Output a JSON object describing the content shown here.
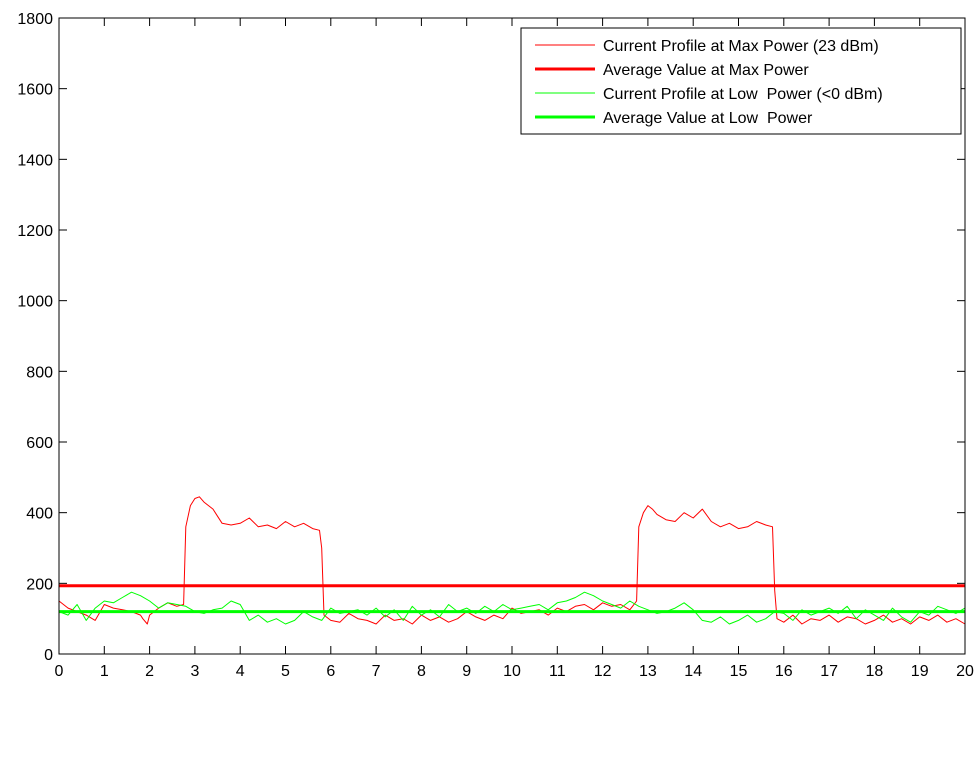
{
  "chart_data": {
    "type": "line",
    "title": "",
    "xlabel": "",
    "ylabel": "",
    "xlim": [
      0,
      20
    ],
    "ylim": [
      0,
      1800
    ],
    "x_ticks": [
      0,
      1,
      2,
      3,
      4,
      5,
      6,
      7,
      8,
      9,
      10,
      11,
      12,
      13,
      14,
      15,
      16,
      17,
      18,
      19,
      20
    ],
    "y_ticks": [
      0,
      200,
      400,
      600,
      800,
      1000,
      1200,
      1400,
      1600,
      1800
    ],
    "grid": false,
    "legend_position": "top-right",
    "series": [
      {
        "name": "Current Profile at Max Power (23 dBm)",
        "color": "#ff0000",
        "style": "thin",
        "x": [
          0,
          0.2,
          0.4,
          0.6,
          0.8,
          1.0,
          1.2,
          1.4,
          1.6,
          1.8,
          1.85,
          1.95,
          2.0,
          2.2,
          2.4,
          2.6,
          2.75,
          2.8,
          2.9,
          3.0,
          3.1,
          3.2,
          3.3,
          3.4,
          3.5,
          3.6,
          3.8,
          4.0,
          4.2,
          4.4,
          4.6,
          4.8,
          5.0,
          5.2,
          5.4,
          5.6,
          5.75,
          5.8,
          5.85,
          6.0,
          6.2,
          6.4,
          6.6,
          6.8,
          7.0,
          7.2,
          7.4,
          7.6,
          7.8,
          8.0,
          8.2,
          8.4,
          8.6,
          8.8,
          9.0,
          9.2,
          9.4,
          9.6,
          9.8,
          10.0,
          10.2,
          10.4,
          10.6,
          10.8,
          11.0,
          11.2,
          11.4,
          11.6,
          11.8,
          12.0,
          12.2,
          12.4,
          12.6,
          12.75,
          12.8,
          12.9,
          13.0,
          13.1,
          13.2,
          13.4,
          13.6,
          13.8,
          14.0,
          14.2,
          14.4,
          14.6,
          14.8,
          15.0,
          15.2,
          15.4,
          15.6,
          15.75,
          15.8,
          15.85,
          16.0,
          16.2,
          16.4,
          16.6,
          16.8,
          17.0,
          17.2,
          17.4,
          17.6,
          17.8,
          18.0,
          18.2,
          18.4,
          18.6,
          18.8,
          19.0,
          19.2,
          19.4,
          19.6,
          19.8,
          20.0
        ],
        "y": [
          150,
          130,
          120,
          110,
          95,
          140,
          130,
          125,
          120,
          110,
          100,
          85,
          110,
          130,
          145,
          135,
          140,
          360,
          420,
          440,
          445,
          430,
          420,
          410,
          390,
          370,
          365,
          370,
          385,
          360,
          365,
          355,
          375,
          360,
          370,
          355,
          350,
          300,
          110,
          95,
          90,
          115,
          100,
          95,
          85,
          110,
          95,
          100,
          85,
          110,
          95,
          105,
          90,
          100,
          120,
          105,
          95,
          110,
          100,
          130,
          115,
          120,
          125,
          110,
          130,
          120,
          135,
          140,
          125,
          145,
          135,
          140,
          125,
          150,
          360,
          400,
          420,
          410,
          395,
          380,
          375,
          400,
          385,
          410,
          375,
          360,
          370,
          355,
          360,
          375,
          365,
          360,
          180,
          100,
          90,
          110,
          85,
          100,
          95,
          110,
          90,
          105,
          100,
          85,
          95,
          110,
          90,
          100,
          85,
          105,
          95,
          110,
          90,
          100,
          85
        ]
      },
      {
        "name": "Average Value at Max Power",
        "color": "#ff0000",
        "style": "thick",
        "x": [
          0,
          20
        ],
        "y": [
          193,
          193
        ]
      },
      {
        "name": "Current Profile at Low  Power (<0 dBm)",
        "color": "#00ff00",
        "style": "thin",
        "x": [
          0,
          0.2,
          0.4,
          0.6,
          0.8,
          1.0,
          1.2,
          1.4,
          1.6,
          1.8,
          2.0,
          2.2,
          2.4,
          2.6,
          2.8,
          3.0,
          3.2,
          3.4,
          3.6,
          3.8,
          4.0,
          4.2,
          4.4,
          4.6,
          4.8,
          5.0,
          5.2,
          5.4,
          5.6,
          5.8,
          6.0,
          6.2,
          6.4,
          6.6,
          6.8,
          7.0,
          7.2,
          7.4,
          7.6,
          7.8,
          8.0,
          8.2,
          8.4,
          8.6,
          8.8,
          9.0,
          9.2,
          9.4,
          9.6,
          9.8,
          10.0,
          10.2,
          10.4,
          10.6,
          10.8,
          11.0,
          11.2,
          11.4,
          11.6,
          11.8,
          12.0,
          12.2,
          12.4,
          12.6,
          12.8,
          13.0,
          13.2,
          13.4,
          13.6,
          13.8,
          14.0,
          14.2,
          14.4,
          14.6,
          14.8,
          15.0,
          15.2,
          15.4,
          15.6,
          15.8,
          16.0,
          16.2,
          16.4,
          16.6,
          16.8,
          17.0,
          17.2,
          17.4,
          17.6,
          17.8,
          18.0,
          18.2,
          18.4,
          18.6,
          18.8,
          19.0,
          19.2,
          19.4,
          19.6,
          19.8,
          20.0
        ],
        "y": [
          120,
          110,
          140,
          95,
          130,
          150,
          145,
          160,
          175,
          165,
          150,
          130,
          145,
          140,
          135,
          120,
          115,
          125,
          130,
          150,
          140,
          95,
          110,
          90,
          100,
          85,
          95,
          120,
          105,
          95,
          130,
          115,
          120,
          125,
          110,
          130,
          105,
          125,
          95,
          135,
          110,
          125,
          105,
          140,
          120,
          130,
          115,
          135,
          120,
          140,
          125,
          130,
          135,
          140,
          125,
          145,
          150,
          160,
          175,
          165,
          150,
          140,
          130,
          150,
          135,
          125,
          115,
          120,
          130,
          145,
          125,
          95,
          90,
          105,
          85,
          95,
          110,
          90,
          100,
          120,
          115,
          95,
          125,
          110,
          120,
          130,
          115,
          135,
          100,
          125,
          110,
          95,
          130,
          105,
          90,
          120,
          110,
          135,
          125,
          115,
          130
        ]
      },
      {
        "name": "Average Value at Low  Power",
        "color": "#00ff00",
        "style": "thick",
        "x": [
          0,
          20
        ],
        "y": [
          120,
          120
        ]
      }
    ]
  }
}
